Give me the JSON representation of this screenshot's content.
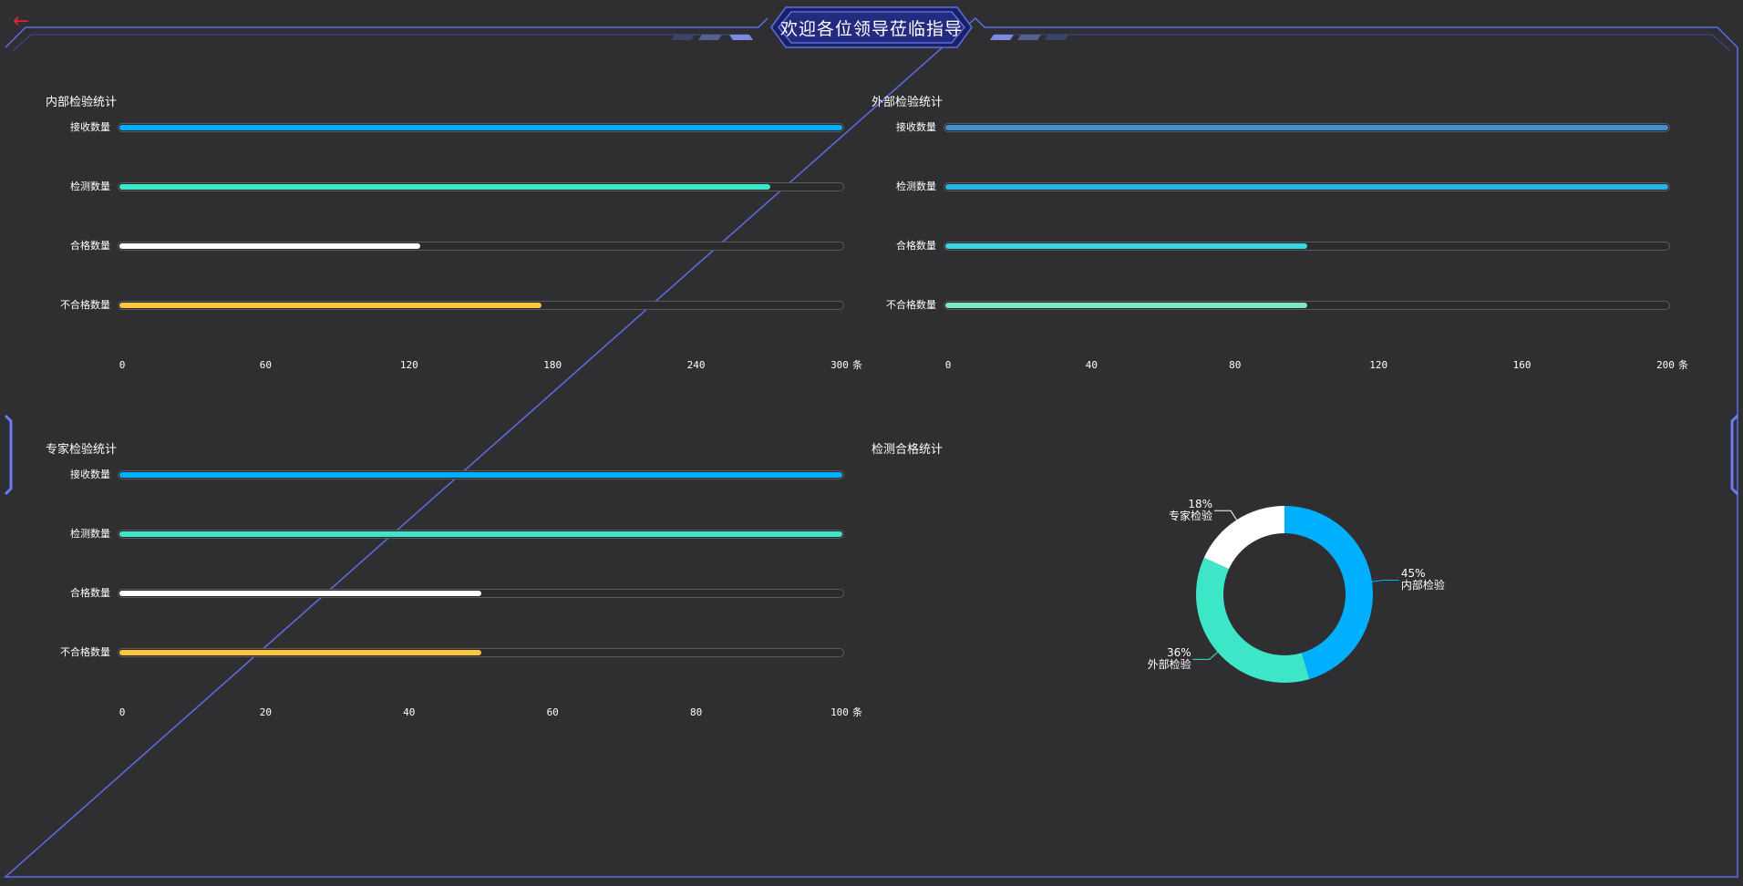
{
  "header": {
    "title": "欢迎各位领导莅临指导",
    "back_icon": "arrow-left-icon",
    "back_color": "#e0213a",
    "frame_color": "#5b6ee8"
  },
  "colors": {
    "background": "#2f2f31",
    "track_border": "#5a5a5e"
  },
  "chart_data": [
    {
      "type": "bar",
      "orientation": "horizontal",
      "title": "内部检验统计",
      "categories": [
        "接收数量",
        "检测数量",
        "合格数量",
        "不合格数量"
      ],
      "values": [
        300,
        270,
        125,
        175
      ],
      "colors": [
        "#00b0ff",
        "#3ee6c8",
        "#ffffff",
        "#ffc53d"
      ],
      "xlim": [
        0,
        300
      ],
      "ticks": [
        "0",
        "60",
        "120",
        "180",
        "240",
        "300"
      ],
      "unit": "条"
    },
    {
      "type": "bar",
      "orientation": "horizontal",
      "title": "外部检验统计",
      "categories": [
        "接收数量",
        "检测数量",
        "合格数量",
        "不合格数量"
      ],
      "values": [
        200,
        200,
        100,
        100
      ],
      "colors": [
        "#3f8fd2",
        "#26b3e6",
        "#36d8e0",
        "#7fe8c2"
      ],
      "xlim": [
        0,
        200
      ],
      "ticks": [
        "0",
        "40",
        "80",
        "120",
        "160",
        "200"
      ],
      "unit": "条"
    },
    {
      "type": "bar",
      "orientation": "horizontal",
      "title": "专家检验统计",
      "categories": [
        "接收数量",
        "检测数量",
        "合格数量",
        "不合格数量"
      ],
      "values": [
        100,
        100,
        50,
        50
      ],
      "colors": [
        "#00b0ff",
        "#3ee6c8",
        "#ffffff",
        "#ffc53d"
      ],
      "xlim": [
        0,
        100
      ],
      "ticks": [
        "0",
        "20",
        "40",
        "60",
        "80",
        "100"
      ],
      "unit": "条"
    },
    {
      "type": "pie",
      "title": "检测合格统计",
      "labels": [
        "内部检验",
        "外部检验",
        "专家检验"
      ],
      "values": [
        45,
        36,
        18
      ],
      "percent_labels": [
        "45%",
        "36%",
        "18%"
      ],
      "colors": [
        "#00b0ff",
        "#3ee6c8",
        "#ffffff"
      ]
    }
  ]
}
